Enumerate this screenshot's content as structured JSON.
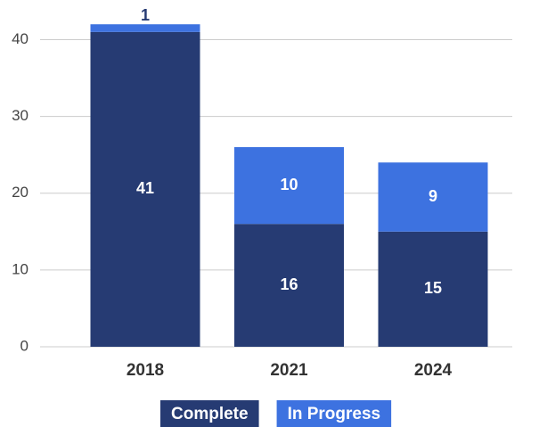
{
  "chart_data": {
    "type": "stacked_bar",
    "categories": [
      "2018",
      "2021",
      "2024"
    ],
    "series": [
      {
        "name": "Complete",
        "color": "#263b73",
        "values": [
          41,
          16,
          15
        ]
      },
      {
        "name": "In Progress",
        "color": "#3d72e0",
        "values": [
          1,
          10,
          9
        ]
      }
    ],
    "ylim": [
      0,
      44
    ],
    "yticks": [
      0,
      10,
      20,
      30,
      40
    ],
    "grid": true,
    "legend": "bottom"
  }
}
